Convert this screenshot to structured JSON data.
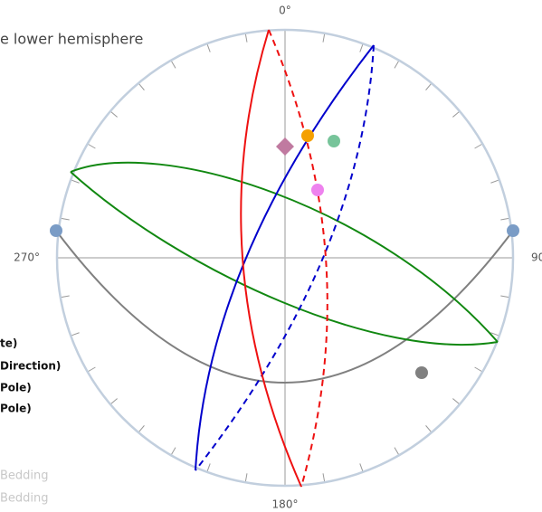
{
  "title": "e lower hemisphere",
  "directions": {
    "north": "0°",
    "east": "90",
    "south": "180°",
    "west": "270°"
  },
  "legend": [
    "te)",
    "Direction)",
    "Pole)",
    "Pole)",
    "Bedding",
    "Bedding"
  ]
}
